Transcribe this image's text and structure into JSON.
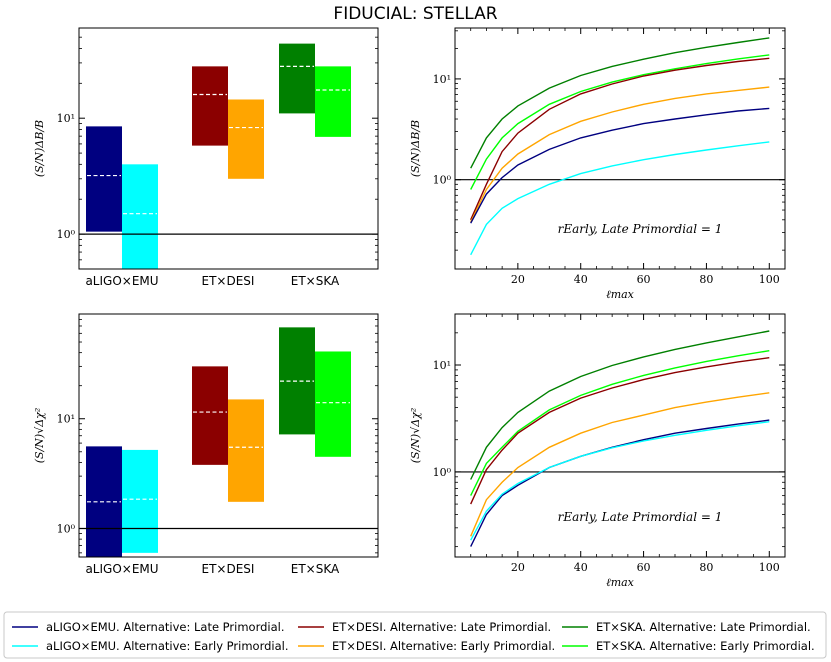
{
  "figure_title": "FIDUCIAL: STELLAR",
  "colors": {
    "aLIGO_late": "#000080",
    "aLIGO_early": "#00ffff",
    "DESI_late": "#8b0000",
    "DESI_early": "#ffa500",
    "SKA_late": "#008000",
    "SKA_early": "#00ff00"
  },
  "legend": [
    {
      "label": "aLIGO×EMU. Alternative: Late Primordial.",
      "color_key": "aLIGO_late"
    },
    {
      "label": "aLIGO×EMU. Alternative: Early Primordial.",
      "color_key": "aLIGO_early"
    },
    {
      "label": "ET×DESI. Alternative: Late Primordial.",
      "color_key": "DESI_late"
    },
    {
      "label": "ET×DESI. Alternative: Early Primordial.",
      "color_key": "DESI_early"
    },
    {
      "label": "ET×SKA. Alternative: Late Primordial.",
      "color_key": "SKA_late"
    },
    {
      "label": "ET×SKA. Alternative: Early Primordial.",
      "color_key": "SKA_early"
    }
  ],
  "chart_data": [
    {
      "id": "tl",
      "type": "bar",
      "ylabel": "(S/N)ΔB/B",
      "yscale": "log",
      "ylim": [
        0.5,
        60
      ],
      "yticks": [
        {
          "value": 1,
          "label": "10⁰"
        },
        {
          "value": 10,
          "label": "10¹"
        }
      ],
      "hline": 1,
      "categories": [
        "aLIGO×EMU",
        "ET×DESI",
        "ET×SKA"
      ],
      "boxes": [
        {
          "category": 0,
          "series": "Late Primordial",
          "color_key": "aLIGO_late",
          "low": 1.05,
          "high": 8.5,
          "median": 3.2
        },
        {
          "category": 0,
          "series": "Early Primordial",
          "color_key": "aLIGO_early",
          "low": 0.5,
          "high": 4.0,
          "median": 1.5
        },
        {
          "category": 1,
          "series": "Late Primordial",
          "color_key": "DESI_late",
          "low": 5.8,
          "high": 28,
          "median": 16
        },
        {
          "category": 1,
          "series": "Early Primordial",
          "color_key": "DESI_early",
          "low": 3.0,
          "high": 14.5,
          "median": 8.3
        },
        {
          "category": 2,
          "series": "Late Primordial",
          "color_key": "SKA_late",
          "low": 11,
          "high": 44,
          "median": 28
        },
        {
          "category": 2,
          "series": "Early Primordial",
          "color_key": "SKA_early",
          "low": 6.9,
          "high": 28,
          "median": 17.5
        }
      ]
    },
    {
      "id": "tr",
      "type": "line",
      "xlabel": "ℓmax",
      "ylabel": "(S/N)ΔB/B",
      "yscale": "log",
      "xlim": [
        0,
        105
      ],
      "ylim": [
        0.13,
        32
      ],
      "xticks": [
        {
          "value": 20,
          "label": "20"
        },
        {
          "value": 40,
          "label": "40"
        },
        {
          "value": 60,
          "label": "60"
        },
        {
          "value": 80,
          "label": "80"
        },
        {
          "value": 100,
          "label": "100"
        }
      ],
      "yticks": [
        {
          "value": 1,
          "label": "10⁰"
        },
        {
          "value": 10,
          "label": "10¹"
        }
      ],
      "hline": 1,
      "annotation": "rEarly, Late Primordial = 1",
      "x": [
        5,
        10,
        15,
        20,
        30,
        40,
        50,
        60,
        70,
        80,
        90,
        100
      ],
      "series": [
        {
          "name": "ET×SKA. Late",
          "color_key": "SKA_late",
          "values": [
            1.3,
            2.6,
            4.0,
            5.4,
            8.1,
            10.8,
            13.3,
            15.7,
            18.2,
            20.6,
            23.0,
            25.5
          ]
        },
        {
          "name": "ET×SKA. Early",
          "color_key": "SKA_early",
          "values": [
            0.8,
            1.6,
            2.6,
            3.6,
            5.6,
            7.5,
            9.3,
            11.0,
            12.6,
            14.2,
            15.8,
            17.3
          ]
        },
        {
          "name": "ET×DESI. Late",
          "color_key": "DESI_late",
          "values": [
            0.4,
            0.9,
            1.9,
            2.9,
            5.0,
            7.1,
            8.9,
            10.7,
            12.2,
            13.6,
            14.9,
            16.0
          ]
        },
        {
          "name": "ET×DESI. Early",
          "color_key": "DESI_early",
          "values": [
            0.38,
            0.8,
            1.3,
            1.8,
            2.8,
            3.8,
            4.7,
            5.6,
            6.4,
            7.1,
            7.7,
            8.3
          ]
        },
        {
          "name": "aLIGO×EMU. Late",
          "color_key": "aLIGO_late",
          "values": [
            0.37,
            0.72,
            1.05,
            1.4,
            2.0,
            2.6,
            3.1,
            3.6,
            4.0,
            4.4,
            4.8,
            5.1
          ]
        },
        {
          "name": "aLIGO×EMU. Early",
          "color_key": "aLIGO_early",
          "values": [
            0.18,
            0.36,
            0.52,
            0.65,
            0.9,
            1.15,
            1.37,
            1.58,
            1.78,
            1.97,
            2.17,
            2.37
          ]
        }
      ]
    },
    {
      "id": "bl",
      "type": "bar",
      "ylabel": "(S/N)√Δχ²",
      "yscale": "log",
      "ylim": [
        0.55,
        90
      ],
      "yticks": [
        {
          "value": 1,
          "label": "10⁰"
        },
        {
          "value": 10,
          "label": "10¹"
        }
      ],
      "hline": 1,
      "categories": [
        "aLIGO×EMU",
        "ET×DESI",
        "ET×SKA"
      ],
      "boxes": [
        {
          "category": 0,
          "series": "Late Primordial",
          "color_key": "aLIGO_late",
          "low": 0.55,
          "high": 5.6,
          "median": 1.75
        },
        {
          "category": 0,
          "series": "Early Primordial",
          "color_key": "aLIGO_early",
          "low": 0.6,
          "high": 5.2,
          "median": 1.85
        },
        {
          "category": 1,
          "series": "Late Primordial",
          "color_key": "DESI_late",
          "low": 3.8,
          "high": 30,
          "median": 11.5
        },
        {
          "category": 1,
          "series": "Early Primordial",
          "color_key": "DESI_early",
          "low": 1.75,
          "high": 15,
          "median": 5.5
        },
        {
          "category": 2,
          "series": "Late Primordial",
          "color_key": "SKA_late",
          "low": 7.2,
          "high": 68,
          "median": 22
        },
        {
          "category": 2,
          "series": "Early Primordial",
          "color_key": "SKA_early",
          "low": 4.5,
          "high": 41,
          "median": 14
        }
      ]
    },
    {
      "id": "br",
      "type": "line",
      "xlabel": "ℓmax",
      "ylabel": "(S/N)√Δχ²",
      "yscale": "log",
      "xlim": [
        0,
        105
      ],
      "ylim": [
        0.16,
        30
      ],
      "xticks": [
        {
          "value": 20,
          "label": "20"
        },
        {
          "value": 40,
          "label": "40"
        },
        {
          "value": 60,
          "label": "60"
        },
        {
          "value": 80,
          "label": "80"
        },
        {
          "value": 100,
          "label": "100"
        }
      ],
      "yticks": [
        {
          "value": 1,
          "label": "10⁰"
        },
        {
          "value": 10,
          "label": "10¹"
        }
      ],
      "hline": 1,
      "annotation": "rEarly, Late Primordial = 1",
      "x": [
        5,
        10,
        15,
        20,
        30,
        40,
        50,
        60,
        70,
        80,
        90,
        100
      ],
      "series": [
        {
          "name": "ET×SKA. Late",
          "color_key": "SKA_late",
          "values": [
            0.85,
            1.7,
            2.6,
            3.6,
            5.7,
            7.8,
            9.9,
            11.9,
            14.0,
            16.1,
            18.3,
            20.8
          ]
        },
        {
          "name": "ET×SKA. Early",
          "color_key": "SKA_early",
          "values": [
            0.6,
            1.2,
            1.7,
            2.4,
            3.8,
            5.2,
            6.6,
            8.0,
            9.4,
            10.8,
            12.2,
            13.6
          ]
        },
        {
          "name": "ET×DESI. Late",
          "color_key": "DESI_late",
          "values": [
            0.5,
            1.05,
            1.6,
            2.3,
            3.6,
            4.9,
            6.1,
            7.3,
            8.5,
            9.6,
            10.7,
            11.7
          ]
        },
        {
          "name": "ET×DESI. Early",
          "color_key": "DESI_early",
          "values": [
            0.25,
            0.55,
            0.8,
            1.1,
            1.7,
            2.3,
            2.9,
            3.4,
            4.0,
            4.5,
            5.0,
            5.5
          ]
        },
        {
          "name": "aLIGO×EMU. Late",
          "color_key": "aLIGO_late",
          "values": [
            0.2,
            0.4,
            0.6,
            0.75,
            1.1,
            1.4,
            1.7,
            2.0,
            2.3,
            2.55,
            2.8,
            3.05
          ]
        },
        {
          "name": "aLIGO×EMU. Early",
          "color_key": "aLIGO_early",
          "values": [
            0.23,
            0.43,
            0.62,
            0.78,
            1.1,
            1.4,
            1.68,
            1.95,
            2.2,
            2.45,
            2.7,
            2.95
          ]
        }
      ]
    }
  ]
}
